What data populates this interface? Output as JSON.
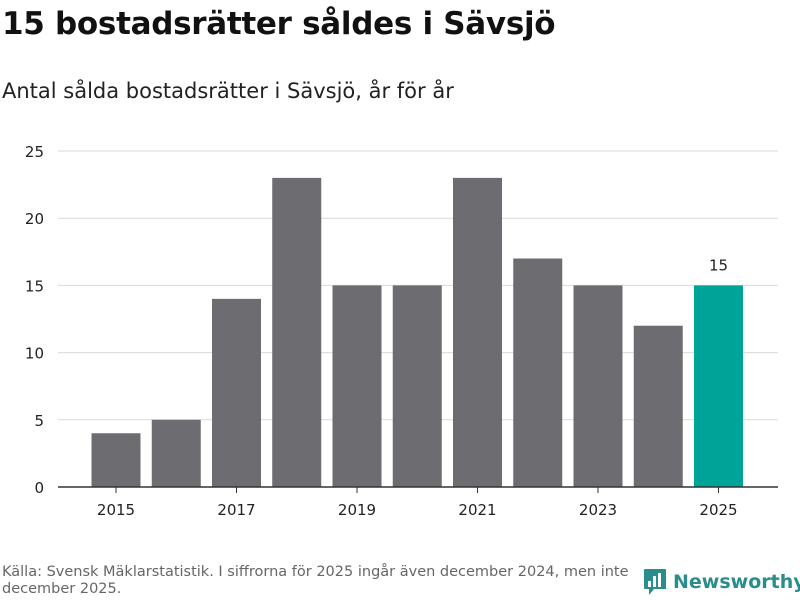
{
  "title": "15 bostadsrätter såldes i Sävsjö",
  "subtitle": "Antal sålda bostadsrätter i Sävsjö, år för år",
  "footer": "Källa: Svensk Mäklarstatistik. I siffrorna för 2025 ingår även december 2024, men inte december 2025.",
  "brand": {
    "name": "Newsworthy",
    "icon": "newsworthy-logo-icon"
  },
  "colors": {
    "bar": "#6d6c70",
    "highlight": "#00a398",
    "grid": "#d9d9d9",
    "axis": "#333333",
    "brand": "#2a8c8c"
  },
  "chart_data": {
    "type": "bar",
    "title": "15 bostadsrätter såldes i Sävsjö",
    "xlabel": "",
    "ylabel": "",
    "categories": [
      "2015",
      "2016",
      "2017",
      "2018",
      "2019",
      "2020",
      "2021",
      "2022",
      "2023",
      "2024",
      "2025"
    ],
    "values": [
      4,
      5,
      14,
      23,
      15,
      15,
      23,
      17,
      15,
      12,
      15
    ],
    "highlight_index": 10,
    "highlight_label": "15",
    "x_tick_labels": [
      "2015",
      "2017",
      "2019",
      "2021",
      "2023",
      "2025"
    ],
    "y_ticks": [
      0,
      5,
      10,
      15,
      20,
      25
    ],
    "ylim": [
      0,
      25
    ],
    "grid": true
  }
}
